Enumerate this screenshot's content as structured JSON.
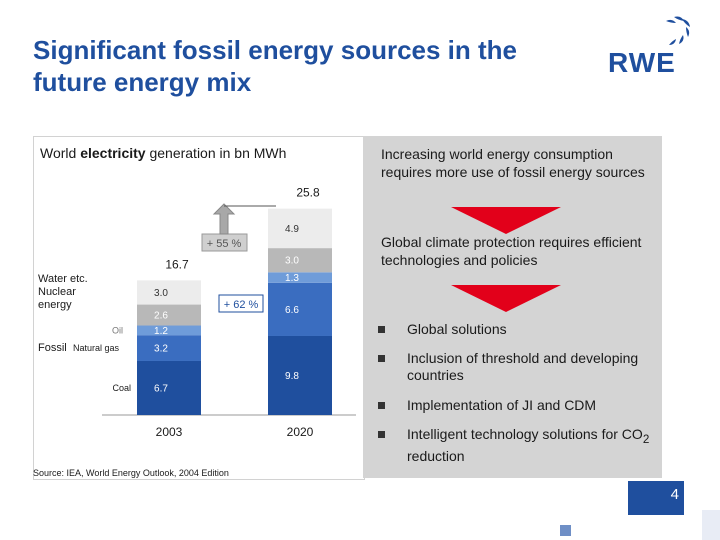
{
  "title": {
    "line1": "Significant fossil energy sources in the",
    "line2": "future energy mix"
  },
  "logo": {
    "text": "RWE"
  },
  "right_panel": {
    "statement1": "Increasing world energy consumption requires more use of fossil energy sources",
    "statement2": "Global climate protection requires efficient technologies and policies",
    "bullets": [
      {
        "text": "Global solutions"
      },
      {
        "text": "Inclusion of threshold and developing countries"
      },
      {
        "text": "Implementation of JI and CDM"
      },
      {
        "text_prefix": "Intelligent technology solutions for CO",
        "sub": "2",
        "text_suffix": " reduction"
      }
    ]
  },
  "source": "Source: IEA, World Energy Outlook, 2004 Edition",
  "page_number": "4",
  "colors": {
    "title": "#1f4f9e",
    "coal": "#1f4f9e",
    "natural_gas": "#3a6dc0",
    "oil": "#6f9cd9",
    "nuclear": "#b8b8b8",
    "water": "#ececec",
    "arrow_red": "#e2001a",
    "panel_grey": "#d4d4d4"
  },
  "chart_data": {
    "type": "bar",
    "stacked": true,
    "title_prefix": "World ",
    "title_bold": "electricity",
    "title_suffix": " generation in bn MWh",
    "categories": [
      "2003",
      "2020"
    ],
    "totals": [
      "16.7",
      "25.8"
    ],
    "series": [
      {
        "name": "Coal",
        "values": [
          6.7,
          9.8
        ],
        "labels": [
          "6.7",
          "9.8"
        ]
      },
      {
        "name": "Natural gas",
        "values": [
          3.2,
          6.6
        ],
        "labels": [
          "3.2",
          "6.6"
        ]
      },
      {
        "name": "Oil",
        "values": [
          1.2,
          1.3
        ],
        "labels": [
          "1.2",
          "1.3"
        ]
      },
      {
        "name": "Nuclear",
        "values": [
          2.6,
          3.0
        ],
        "labels": [
          "2.6",
          "3.0"
        ]
      },
      {
        "name": "Water etc.",
        "values": [
          3.0,
          4.9
        ],
        "labels": [
          "3.0",
          "4.9"
        ]
      }
    ],
    "group_labels": {
      "fossil": "Fossil",
      "water_nuclear": "Water etc.\nNuclear\nenergy"
    },
    "growth_annotations": [
      {
        "label": "+ 55 %",
        "target": "total"
      },
      {
        "label": "+ 62 %",
        "target": "fossil"
      }
    ],
    "ylim": [
      0,
      25.8
    ]
  }
}
